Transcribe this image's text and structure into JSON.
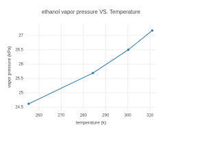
{
  "chart_data": {
    "type": "line",
    "title": "ethanol vapor pressure VS. Temperature",
    "x_label": "temperature (k)",
    "y_label": "vapor pressure (kPa)",
    "x": [
      255.4,
      284.3,
      300.2,
      311.0
    ],
    "series": [
      {
        "color": "#1f77b4",
        "values": [
          24.62,
          25.69,
          26.5,
          27.17
        ]
      }
    ],
    "xlim": [
      254.2,
      312.7
    ],
    "xticks": [
      260,
      270,
      280,
      290,
      300,
      310
    ],
    "ylim": [
      24.38,
      27.4
    ],
    "yticks": [
      24.5,
      25,
      25.5,
      26,
      26.5,
      27
    ],
    "grid": true
  }
}
